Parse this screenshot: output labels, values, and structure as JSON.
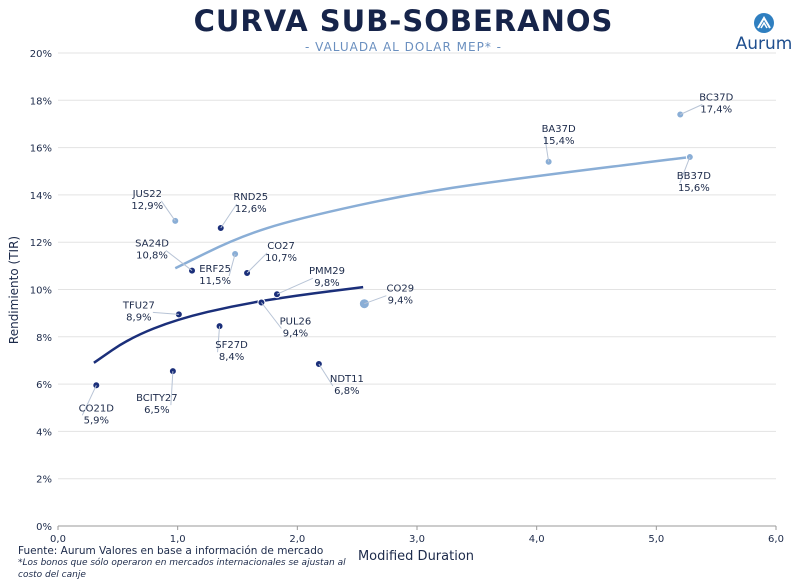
{
  "header": {
    "title": "CURVA SUB-SOBERANOS",
    "subtitle": "- VALUADA AL DOLAR MEP* -"
  },
  "logo": {
    "text": "Aurum",
    "icon": "aurum-logo-icon"
  },
  "footer": {
    "source": "Fuente: Aurum Valores en base a información de mercado",
    "note": "*Los bonos que sólo operaron en mercados internacionales se ajustan al costo del canje"
  },
  "colors": {
    "dark_series": "#1b2f7a",
    "light_series": "#8aaed6",
    "dark_curve": "#1b2f7a",
    "light_curve": "#8aaed6",
    "grid": "#e3e3e3",
    "axis": "#9a9a9a"
  },
  "chart_data": {
    "type": "scatter",
    "xlabel": "Modified Duration",
    "ylabel": "Rendimiento (TIR)",
    "xlim": [
      0,
      6
    ],
    "ylim": [
      0,
      20
    ],
    "grid": true,
    "x_ticks": [
      "0,0",
      "1,0",
      "2,0",
      "3,0",
      "4,0",
      "5,0",
      "6,0"
    ],
    "y_ticks": [
      "0%",
      "2%",
      "4%",
      "6%",
      "8%",
      "10%",
      "12%",
      "14%",
      "16%",
      "18%",
      "20%"
    ],
    "series": [
      {
        "color": "#1b2f7a",
        "points": [
          {
            "label": "CO21D",
            "value": "5,9%",
            "x": 0.32,
            "y": 5.95
          },
          {
            "label": "BCITY27",
            "value": "6,5%",
            "x": 0.96,
            "y": 6.55
          },
          {
            "label": "TFU27",
            "value": "8,9%",
            "x": 1.01,
            "y": 8.95
          },
          {
            "label": "SA24D",
            "value": "10,8%",
            "x": 1.12,
            "y": 10.8
          },
          {
            "label": "RND25",
            "value": "12,6%",
            "x": 1.36,
            "y": 12.6
          },
          {
            "label": "SF27D",
            "value": "8,4%",
            "x": 1.35,
            "y": 8.45
          },
          {
            "label": "CO27",
            "value": "10,7%",
            "x": 1.58,
            "y": 10.7
          },
          {
            "label": "PUL26",
            "value": "9,4%",
            "x": 1.7,
            "y": 9.45
          },
          {
            "label": "PMM29",
            "value": "9,8%",
            "x": 1.83,
            "y": 9.8
          },
          {
            "label": "NDT11",
            "value": "6,8%",
            "x": 2.18,
            "y": 6.85
          }
        ],
        "trend": [
          [
            0.3,
            6.9
          ],
          [
            0.6,
            7.95
          ],
          [
            1.0,
            8.75
          ],
          [
            1.5,
            9.35
          ],
          [
            2.0,
            9.75
          ],
          [
            2.55,
            10.1
          ]
        ]
      },
      {
        "color": "#8aaed6",
        "points": [
          {
            "label": "JUS22",
            "value": "12,9%",
            "x": 0.98,
            "y": 12.9
          },
          {
            "label": "ERF25",
            "value": "11,5%",
            "x": 1.48,
            "y": 11.5
          },
          {
            "label": "CO29",
            "value": "9,4%",
            "x": 2.56,
            "y": 9.4
          },
          {
            "label": "BA37D",
            "value": "15,4%",
            "x": 4.1,
            "y": 15.4
          },
          {
            "label": "BC37D",
            "value": "17,4%",
            "x": 5.2,
            "y": 17.4
          },
          {
            "label": "BB37D",
            "value": "15,6%",
            "x": 5.28,
            "y": 15.6
          }
        ],
        "trend": [
          [
            0.98,
            10.9
          ],
          [
            1.5,
            12.2
          ],
          [
            2.0,
            13.0
          ],
          [
            3.0,
            14.1
          ],
          [
            4.0,
            14.8
          ],
          [
            5.28,
            15.6
          ]
        ]
      }
    ]
  }
}
